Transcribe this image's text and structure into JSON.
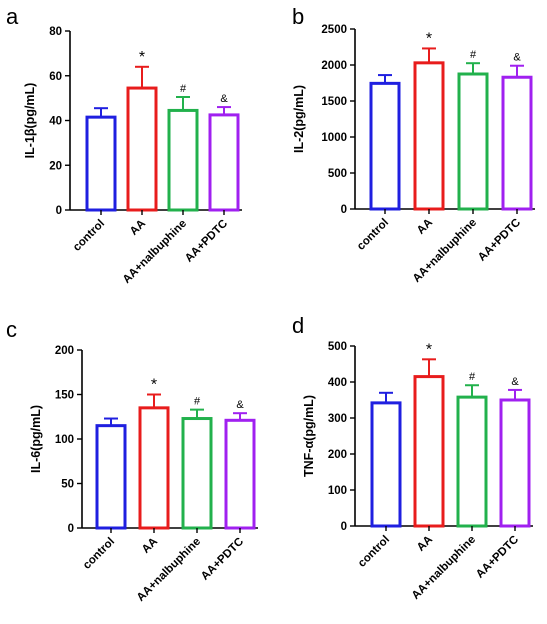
{
  "chart_data": [
    {
      "type": "bar",
      "panel": "a",
      "ylabel": "IL-1β(pg/mL)",
      "ylim": [
        0,
        80
      ],
      "yticks": [
        "0",
        "20",
        "40",
        "60",
        "80"
      ],
      "categories": [
        "control",
        "AA",
        "AA+nalbuphine",
        "AA+PDTC"
      ],
      "values": [
        41.5,
        54.5,
        44.5,
        42.5
      ],
      "errors": [
        4,
        9.5,
        6,
        3.5
      ],
      "markers": [
        "",
        "*",
        "#",
        "&"
      ],
      "colors": [
        "#1f1fe0",
        "#e81c1c",
        "#22b14c",
        "#a020f0"
      ],
      "grid": false
    },
    {
      "type": "bar",
      "panel": "b",
      "ylabel": "IL-2(pg/mL)",
      "ylim": [
        0,
        2500
      ],
      "yticks": [
        "0",
        "500",
        "1000",
        "1500",
        "2000",
        "2500"
      ],
      "categories": [
        "control",
        "AA",
        "AA+nalbuphine",
        "AA+PDTC"
      ],
      "values": [
        1745,
        2030,
        1875,
        1830
      ],
      "errors": [
        115,
        200,
        150,
        160
      ],
      "markers": [
        "",
        "*",
        "#",
        "&"
      ],
      "colors": [
        "#1f1fe0",
        "#e81c1c",
        "#22b14c",
        "#a020f0"
      ],
      "grid": false
    },
    {
      "type": "bar",
      "panel": "c",
      "ylabel": "IL-6(pg/mL)",
      "ylim": [
        0,
        200
      ],
      "yticks": [
        "0",
        "50",
        "100",
        "150",
        "200"
      ],
      "categories": [
        "control",
        "AA",
        "AA+nalbuphine",
        "AA+PDTC"
      ],
      "values": [
        115,
        135,
        123,
        121
      ],
      "errors": [
        8,
        15,
        10,
        8
      ],
      "markers": [
        "",
        "*",
        "#",
        "&"
      ],
      "colors": [
        "#1f1fe0",
        "#e81c1c",
        "#22b14c",
        "#a020f0"
      ],
      "grid": false
    },
    {
      "type": "bar",
      "panel": "d",
      "ylabel": "TNF-α(pg/mL)",
      "ylim": [
        0,
        500
      ],
      "yticks": [
        "0",
        "100",
        "200",
        "300",
        "400",
        "500"
      ],
      "categories": [
        "control",
        "AA",
        "AA+nalbuphine",
        "AA+PDTC"
      ],
      "values": [
        342,
        415,
        358,
        350
      ],
      "errors": [
        28,
        48,
        33,
        28
      ],
      "markers": [
        "",
        "*",
        "#",
        "&"
      ],
      "colors": [
        "#1f1fe0",
        "#e81c1c",
        "#22b14c",
        "#a020f0"
      ],
      "grid": false
    }
  ]
}
